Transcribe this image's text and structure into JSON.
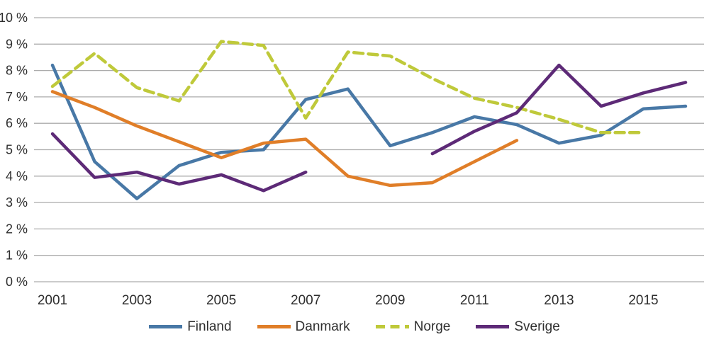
{
  "chart_data": {
    "type": "line",
    "x": [
      2001,
      2002,
      2003,
      2004,
      2005,
      2006,
      2007,
      2008,
      2009,
      2010,
      2011,
      2012,
      2013,
      2014,
      2015,
      2016
    ],
    "xticks": [
      2001,
      2003,
      2005,
      2007,
      2009,
      2011,
      2013,
      2015
    ],
    "xtick_labels": [
      "2001",
      "2003",
      "2005",
      "2007",
      "2009",
      "2011",
      "2013",
      "2015"
    ],
    "ylim": [
      0,
      10
    ],
    "ytick_labels": [
      "0 %",
      "1 %",
      "2 %",
      "3 %",
      "4 %",
      "5 %",
      "6 %",
      "7 %",
      "8 %",
      "9 %",
      "10 %"
    ],
    "grid": true,
    "legend_position": "bottom",
    "series": [
      {
        "name": "Finland",
        "color": "#4878A6",
        "style": "solid",
        "values": [
          8.2,
          4.55,
          3.15,
          4.4,
          4.9,
          5.0,
          6.9,
          7.3,
          5.15,
          5.65,
          6.25,
          5.95,
          5.25,
          5.55,
          6.55,
          6.65
        ]
      },
      {
        "name": "Danmark",
        "color": "#E07E28",
        "style": "solid",
        "values": [
          7.2,
          6.6,
          5.9,
          5.3,
          4.7,
          5.25,
          5.4,
          4.0,
          3.65,
          3.75,
          4.55,
          5.35,
          null,
          null,
          null,
          null
        ]
      },
      {
        "name": "Norge",
        "color": "#BFC93A",
        "style": "dashed",
        "values": [
          7.4,
          8.65,
          7.35,
          6.85,
          9.1,
          8.95,
          6.2,
          8.7,
          8.55,
          7.7,
          6.95,
          6.6,
          6.15,
          5.65,
          5.65,
          null
        ]
      },
      {
        "name": "Sverige",
        "color": "#5D2A77",
        "style": "solid",
        "values": [
          5.6,
          3.95,
          4.15,
          3.7,
          4.05,
          3.45,
          4.15,
          null,
          null,
          4.85,
          5.7,
          6.4,
          8.2,
          6.65,
          7.15,
          7.55
        ]
      }
    ]
  },
  "colors": {
    "gridline": "#ACACAC",
    "axis_text": "#2E2E2E",
    "background": "#FFFFFF"
  }
}
